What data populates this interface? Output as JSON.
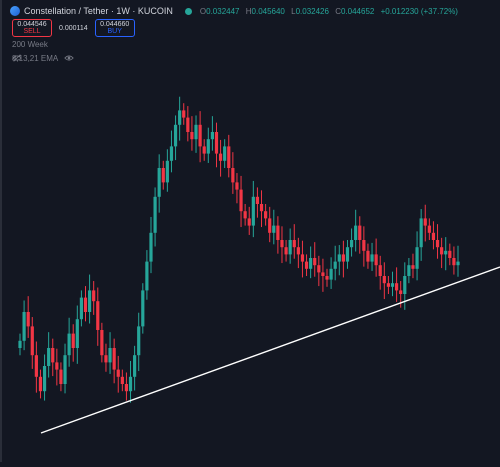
{
  "header": {
    "symbol": "Constellation / Tether · 1W · KUCOIN",
    "ohlc": [
      {
        "label": "O",
        "value": "0.032447"
      },
      {
        "label": "H",
        "value": "0.045640"
      },
      {
        "label": "L",
        "value": "0.032426"
      },
      {
        "label": "C",
        "value": "0.044652"
      }
    ],
    "change": "+0.012230 (+37.72%)"
  },
  "trade": {
    "sell_price": "0.044546",
    "sell_label": "SELL",
    "spread": "0.000114",
    "buy_price": "0.044660",
    "buy_label": "BUY"
  },
  "indicators": [
    {
      "label": "200 Week"
    },
    {
      "label": "8,13,21 EMA"
    }
  ],
  "colors": {
    "up": "#26a69a",
    "down": "#f23645",
    "background": "#131722",
    "trendline": "#ffffff"
  },
  "chart_data": {
    "type": "candlestick",
    "series_closes_relative": [
      0.22,
      0.3,
      0.26,
      0.18,
      0.12,
      0.08,
      0.15,
      0.2,
      0.16,
      0.14,
      0.1,
      0.18,
      0.24,
      0.2,
      0.28,
      0.34,
      0.3,
      0.36,
      0.33,
      0.25,
      0.18,
      0.16,
      0.2,
      0.14,
      0.12,
      0.1,
      0.08,
      0.12,
      0.18,
      0.26,
      0.36,
      0.44,
      0.52,
      0.62,
      0.7,
      0.66,
      0.72,
      0.76,
      0.82,
      0.86,
      0.84,
      0.8,
      0.78,
      0.82,
      0.76,
      0.74,
      0.78,
      0.8,
      0.74,
      0.72,
      0.76,
      0.7,
      0.66,
      0.64,
      0.58,
      0.56,
      0.54,
      0.62,
      0.6,
      0.58,
      0.56,
      0.52,
      0.54,
      0.5,
      0.48,
      0.46,
      0.5,
      0.48,
      0.46,
      0.44,
      0.42,
      0.45,
      0.43,
      0.41,
      0.4,
      0.39,
      0.42,
      0.44,
      0.46,
      0.44,
      0.48,
      0.5,
      0.54,
      0.5,
      0.47,
      0.44,
      0.46,
      0.43,
      0.4,
      0.38,
      0.37,
      0.38,
      0.36,
      0.35,
      0.4,
      0.43,
      0.42,
      0.48,
      0.56,
      0.54,
      0.52,
      0.5,
      0.48,
      0.46,
      0.47,
      0.45,
      0.43,
      0.44
    ],
    "trendline": {
      "from_index": 0,
      "to_index": 107
    }
  }
}
